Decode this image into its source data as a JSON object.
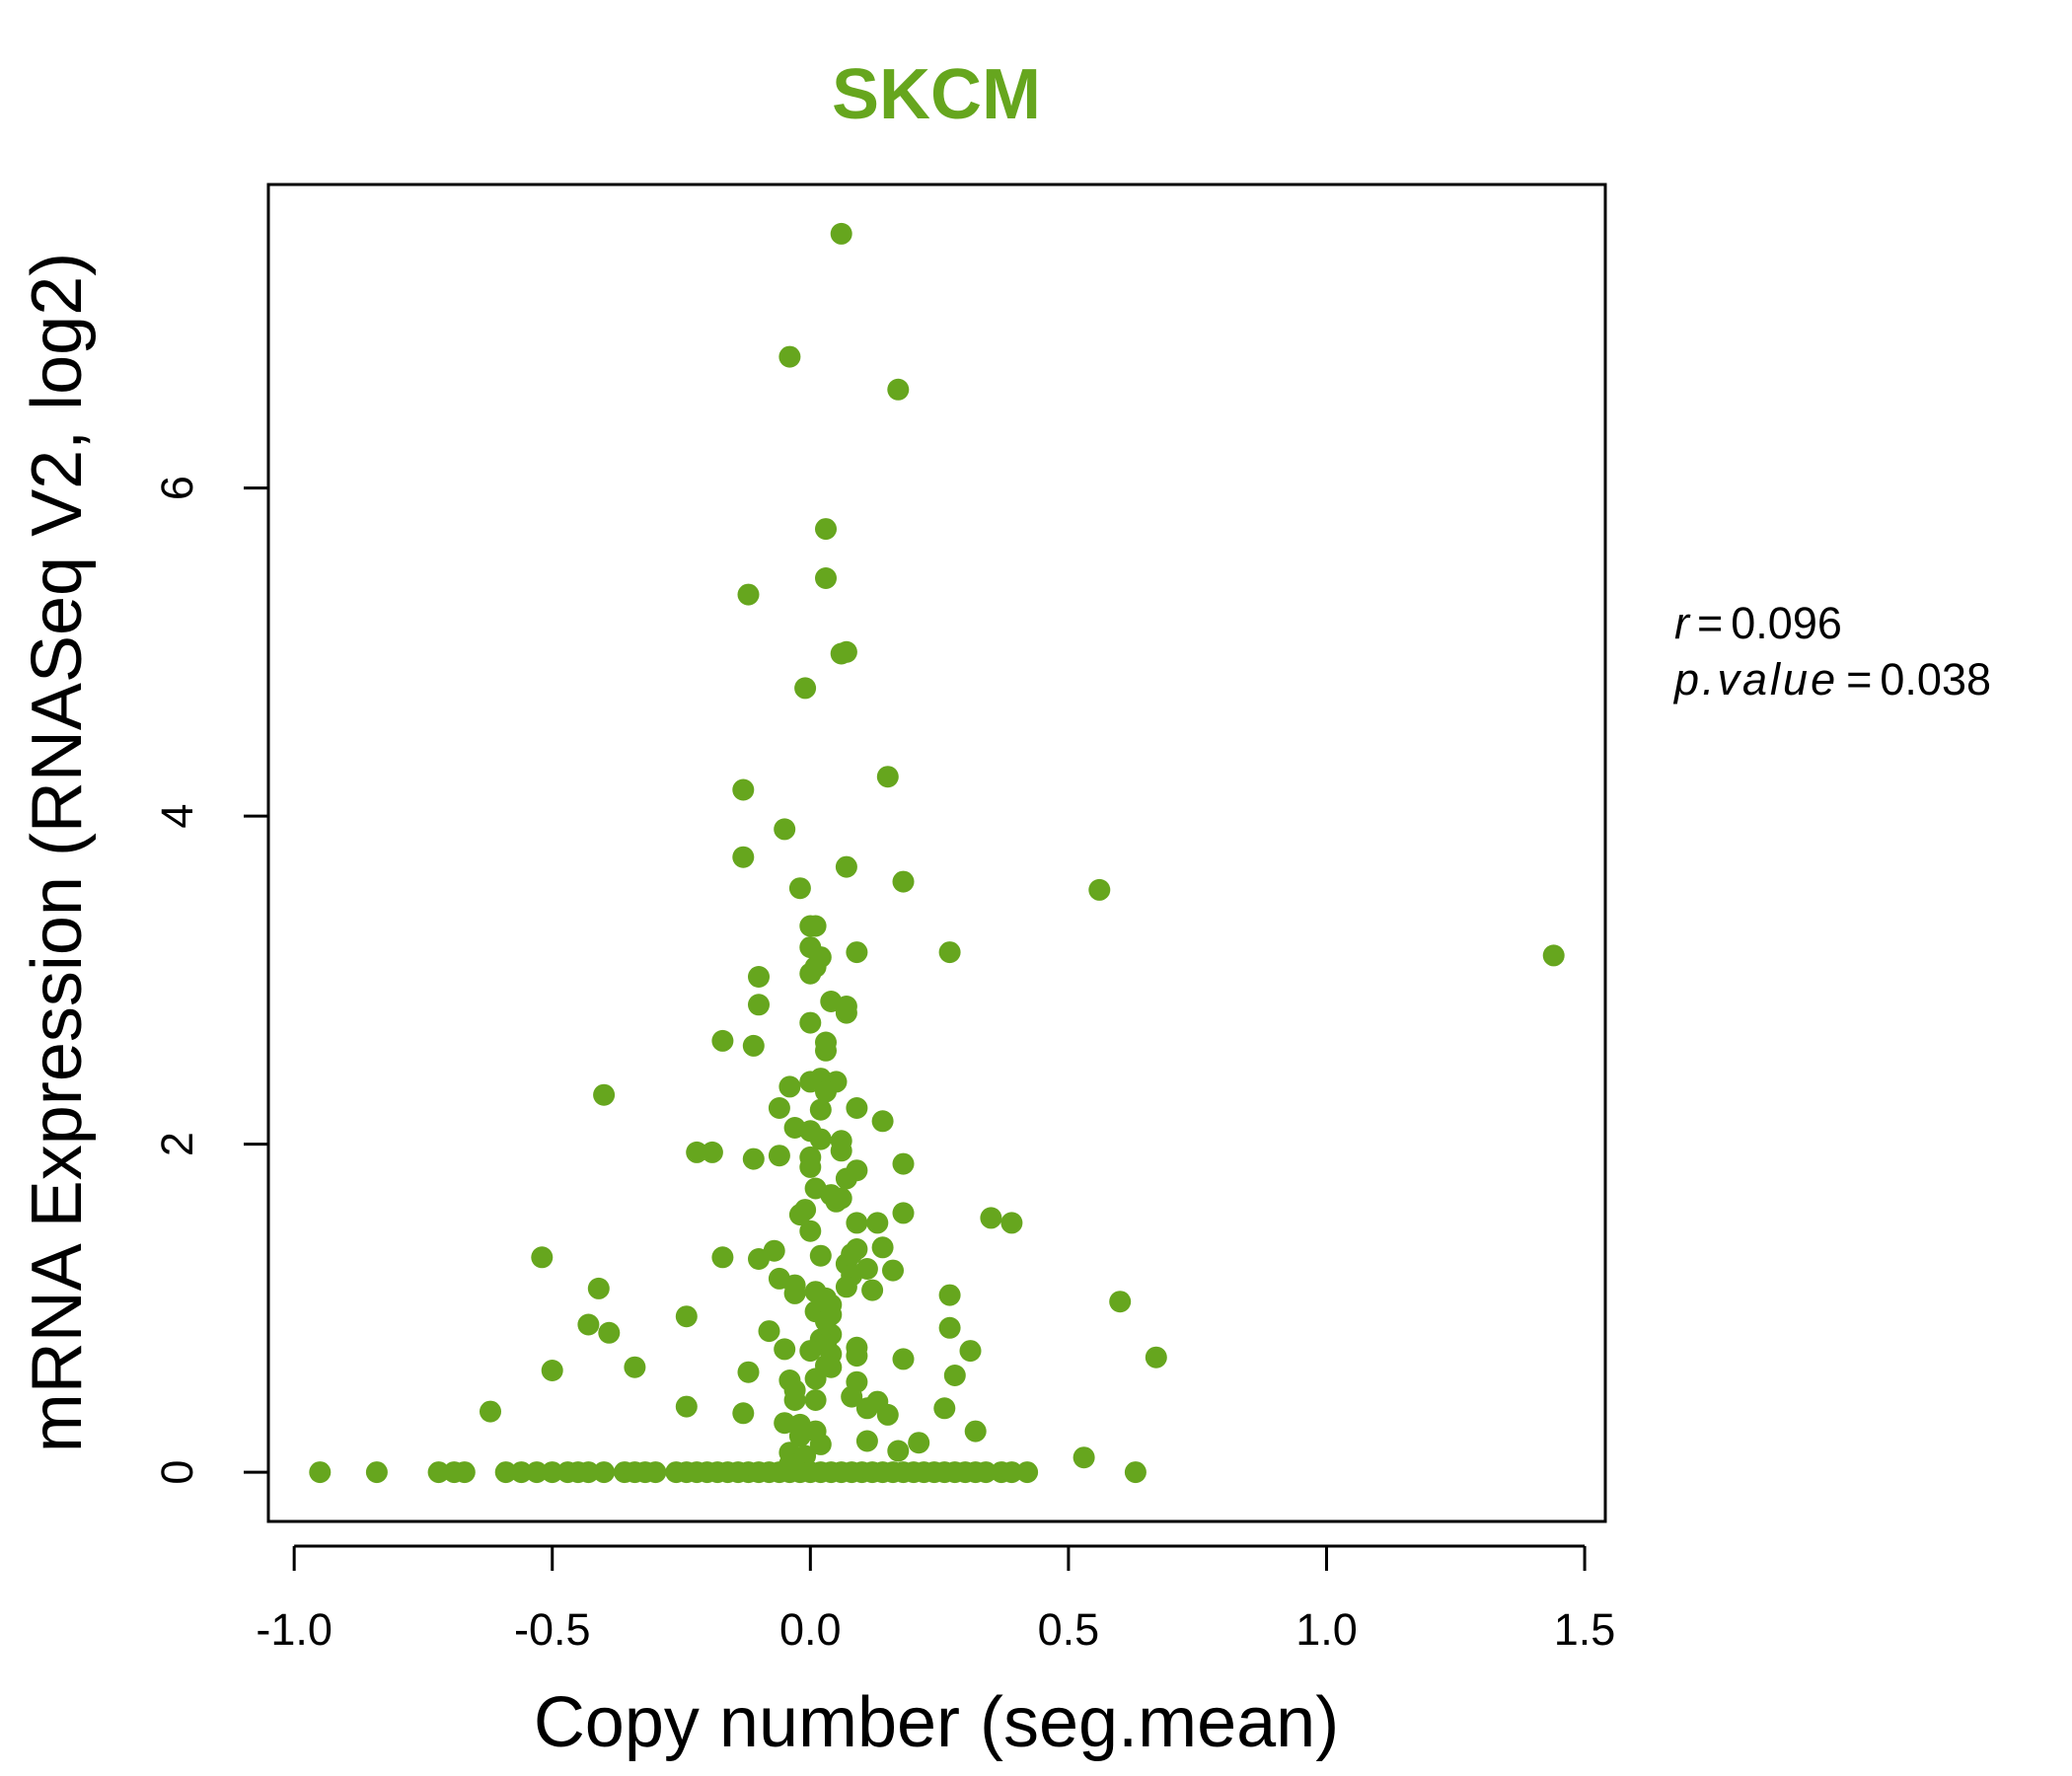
{
  "chart_data": {
    "type": "scatter",
    "title": "SKCM",
    "xlabel": "Copy number (seg.mean)",
    "ylabel": "mRNA Expression (RNASeq V2, log2)",
    "xlim": [
      -1.05,
      1.54
    ],
    "ylim": [
      -0.3,
      7.85
    ],
    "xticks": [
      -1.0,
      -0.5,
      0.0,
      0.5,
      1.0,
      1.5
    ],
    "xtick_labels": [
      "-1.0",
      "-0.5",
      "0.0",
      "0.5",
      "1.0",
      "1.5"
    ],
    "yticks": [
      0,
      2,
      4,
      6
    ],
    "ytick_labels": [
      "0",
      "2",
      "4",
      "6"
    ],
    "grid": false,
    "legend": "none",
    "colors": {
      "points": "#66a61e",
      "title": "#66a61e",
      "axis": "#000000"
    },
    "stats": {
      "r_label": "r",
      "r_value": "0.096",
      "p_label": "p.value",
      "p_value": "0.038",
      "equals": "="
    },
    "points": [
      [
        0.06,
        7.55
      ],
      [
        -0.04,
        6.8
      ],
      [
        0.17,
        6.6
      ],
      [
        0.03,
        5.75
      ],
      [
        0.03,
        5.45
      ],
      [
        -0.12,
        5.35
      ],
      [
        0.07,
        5.0
      ],
      [
        0.06,
        4.99
      ],
      [
        -0.01,
        4.78
      ],
      [
        0.15,
        4.24
      ],
      [
        -0.13,
        4.16
      ],
      [
        -0.05,
        3.92
      ],
      [
        -0.13,
        3.75
      ],
      [
        0.07,
        3.69
      ],
      [
        0.18,
        3.6
      ],
      [
        -0.02,
        3.56
      ],
      [
        0.56,
        3.55
      ],
      [
        0.0,
        3.33
      ],
      [
        0.01,
        3.33
      ],
      [
        1.44,
        3.15
      ],
      [
        0.27,
        3.17
      ],
      [
        0.09,
        3.17
      ],
      [
        0.0,
        3.2
      ],
      [
        0.02,
        3.14
      ],
      [
        -0.1,
        3.02
      ],
      [
        0.0,
        3.04
      ],
      [
        0.01,
        3.08
      ],
      [
        -0.1,
        2.85
      ],
      [
        0.04,
        2.87
      ],
      [
        0.07,
        2.84
      ],
      [
        0.07,
        2.8
      ],
      [
        0.0,
        2.74
      ],
      [
        -0.17,
        2.63
      ],
      [
        -0.11,
        2.6
      ],
      [
        0.03,
        2.62
      ],
      [
        0.03,
        2.57
      ],
      [
        -0.4,
        2.3
      ],
      [
        0.02,
        2.4
      ],
      [
        0.05,
        2.38
      ],
      [
        -0.04,
        2.35
      ],
      [
        0.0,
        2.38
      ],
      [
        0.03,
        2.32
      ],
      [
        -0.06,
        2.22
      ],
      [
        0.02,
        2.21
      ],
      [
        0.09,
        2.22
      ],
      [
        0.14,
        2.14
      ],
      [
        -0.03,
        2.1
      ],
      [
        0.0,
        2.08
      ],
      [
        0.02,
        2.03
      ],
      [
        0.06,
        2.02
      ],
      [
        0.06,
        1.96
      ],
      [
        -0.22,
        1.95
      ],
      [
        -0.19,
        1.95
      ],
      [
        -0.06,
        1.93
      ],
      [
        -0.11,
        1.91
      ],
      [
        0.0,
        1.92
      ],
      [
        0.0,
        1.86
      ],
      [
        0.09,
        1.84
      ],
      [
        0.18,
        1.88
      ],
      [
        0.07,
        1.79
      ],
      [
        0.01,
        1.73
      ],
      [
        0.04,
        1.69
      ],
      [
        0.05,
        1.65
      ],
      [
        0.06,
        1.67
      ],
      [
        -0.01,
        1.6
      ],
      [
        -0.02,
        1.57
      ],
      [
        0.18,
        1.58
      ],
      [
        0.35,
        1.55
      ],
      [
        0.39,
        1.52
      ],
      [
        0.09,
        1.52
      ],
      [
        0.13,
        1.52
      ],
      [
        0.0,
        1.47
      ],
      [
        0.14,
        1.37
      ],
      [
        0.09,
        1.36
      ],
      [
        -0.07,
        1.35
      ],
      [
        0.08,
        1.33
      ],
      [
        0.02,
        1.32
      ],
      [
        -0.17,
        1.31
      ],
      [
        -0.1,
        1.3
      ],
      [
        -0.52,
        1.31
      ],
      [
        0.07,
        1.27
      ],
      [
        0.11,
        1.24
      ],
      [
        0.16,
        1.23
      ],
      [
        0.08,
        1.2
      ],
      [
        -0.06,
        1.18
      ],
      [
        -0.03,
        1.14
      ],
      [
        0.07,
        1.13
      ],
      [
        0.12,
        1.11
      ],
      [
        -0.03,
        1.09
      ],
      [
        -0.41,
        1.12
      ],
      [
        0.01,
        1.1
      ],
      [
        0.03,
        1.06
      ],
      [
        0.27,
        1.08
      ],
      [
        0.6,
        1.04
      ],
      [
        0.04,
        1.02
      ],
      [
        0.01,
        0.98
      ],
      [
        0.04,
        0.96
      ],
      [
        0.03,
        0.92
      ],
      [
        -0.24,
        0.95
      ],
      [
        -0.43,
        0.9
      ],
      [
        -0.39,
        0.85
      ],
      [
        0.27,
        0.88
      ],
      [
        -0.08,
        0.86
      ],
      [
        0.04,
        0.84
      ],
      [
        0.02,
        0.81
      ],
      [
        0.03,
        0.78
      ],
      [
        -0.05,
        0.75
      ],
      [
        0.09,
        0.76
      ],
      [
        0.31,
        0.74
      ],
      [
        0.0,
        0.74
      ],
      [
        0.04,
        0.72
      ],
      [
        0.09,
        0.71
      ],
      [
        0.67,
        0.7
      ],
      [
        0.18,
        0.69
      ],
      [
        0.03,
        0.65
      ],
      [
        0.04,
        0.64
      ],
      [
        -0.34,
        0.64
      ],
      [
        -0.5,
        0.62
      ],
      [
        -0.12,
        0.61
      ],
      [
        0.28,
        0.59
      ],
      [
        0.01,
        0.57
      ],
      [
        -0.04,
        0.56
      ],
      [
        0.09,
        0.55
      ],
      [
        -0.03,
        0.5
      ],
      [
        0.08,
        0.46
      ],
      [
        0.01,
        0.44
      ],
      [
        -0.03,
        0.44
      ],
      [
        0.13,
        0.43
      ],
      [
        -0.24,
        0.4
      ],
      [
        0.11,
        0.39
      ],
      [
        0.26,
        0.39
      ],
      [
        0.15,
        0.35
      ],
      [
        -0.13,
        0.36
      ],
      [
        -0.62,
        0.37
      ],
      [
        -0.05,
        0.3
      ],
      [
        -0.02,
        0.29
      ],
      [
        0.01,
        0.25
      ],
      [
        0.32,
        0.25
      ],
      [
        -0.02,
        0.22
      ],
      [
        0.11,
        0.19
      ],
      [
        0.21,
        0.18
      ],
      [
        0.02,
        0.17
      ],
      [
        0.17,
        0.13
      ],
      [
        -0.04,
        0.12
      ],
      [
        -0.01,
        0.1
      ],
      [
        0.53,
        0.09
      ],
      [
        -0.04,
        0.05
      ],
      [
        -0.95,
        0.0
      ],
      [
        -0.84,
        0.0
      ],
      [
        -0.72,
        0.0
      ],
      [
        -0.69,
        0.0
      ],
      [
        -0.67,
        0.0
      ],
      [
        -0.59,
        0.0
      ],
      [
        -0.56,
        0.0
      ],
      [
        -0.53,
        0.0
      ],
      [
        -0.5,
        0.0
      ],
      [
        -0.47,
        0.0
      ],
      [
        -0.45,
        0.0
      ],
      [
        -0.43,
        0.0
      ],
      [
        -0.4,
        0.0
      ],
      [
        -0.36,
        0.0
      ],
      [
        -0.34,
        0.0
      ],
      [
        -0.32,
        0.0
      ],
      [
        -0.3,
        0.0
      ],
      [
        -0.26,
        0.0
      ],
      [
        -0.24,
        0.0
      ],
      [
        -0.22,
        0.0
      ],
      [
        -0.2,
        0.0
      ],
      [
        -0.18,
        0.0
      ],
      [
        -0.16,
        0.0
      ],
      [
        -0.14,
        0.0
      ],
      [
        -0.12,
        0.0
      ],
      [
        -0.1,
        0.0
      ],
      [
        -0.08,
        0.0
      ],
      [
        -0.06,
        0.0
      ],
      [
        -0.04,
        0.0
      ],
      [
        -0.02,
        0.0
      ],
      [
        0.0,
        0.0
      ],
      [
        0.02,
        0.0
      ],
      [
        0.04,
        0.0
      ],
      [
        0.06,
        0.0
      ],
      [
        0.08,
        0.0
      ],
      [
        0.1,
        0.0
      ],
      [
        0.12,
        0.0
      ],
      [
        0.14,
        0.0
      ],
      [
        0.16,
        0.0
      ],
      [
        0.18,
        0.0
      ],
      [
        0.2,
        0.0
      ],
      [
        0.22,
        0.0
      ],
      [
        0.24,
        0.0
      ],
      [
        0.26,
        0.0
      ],
      [
        0.28,
        0.0
      ],
      [
        0.3,
        0.0
      ],
      [
        0.32,
        0.0
      ],
      [
        0.34,
        0.0
      ],
      [
        0.37,
        0.0
      ],
      [
        0.39,
        0.0
      ],
      [
        0.42,
        0.0
      ],
      [
        0.63,
        0.0
      ]
    ]
  }
}
